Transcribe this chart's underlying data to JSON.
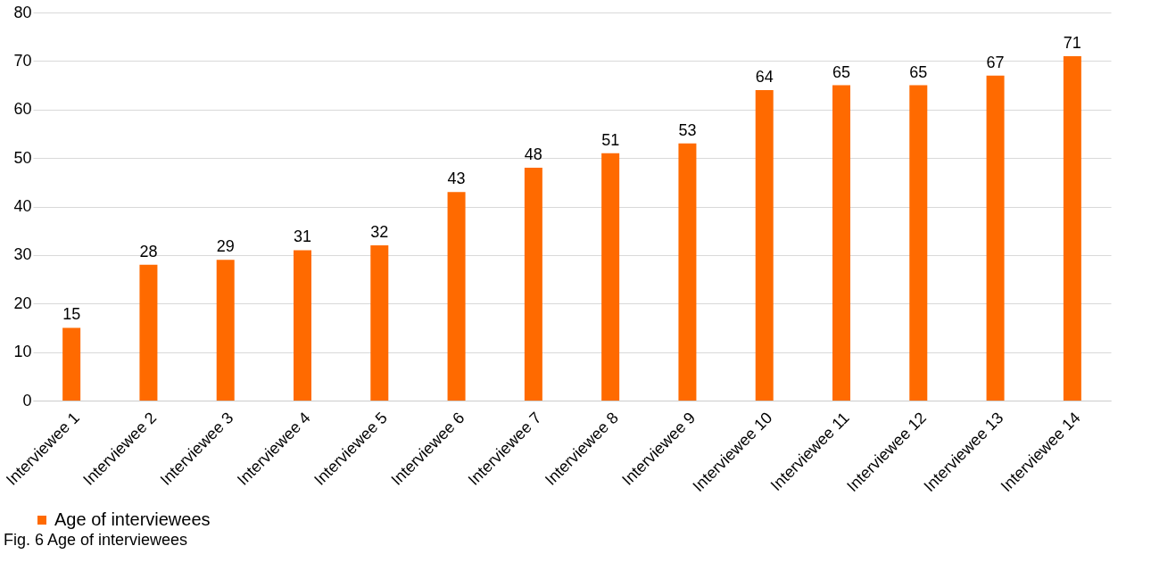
{
  "chart_data": {
    "type": "bar",
    "categories": [
      "Interviewee 1",
      "Interviewee 2",
      "Interviewee 3",
      "Interviewee 4",
      "Interviewee 5",
      "Interviewee 6",
      "Interviewee 7",
      "Interviewee 8",
      "Interviewee 9",
      "Interviewee 10",
      "Interviewee 11",
      "Interviewee 12",
      "Interviewee 13",
      "Interviewee 14"
    ],
    "series": [
      {
        "name": "Age of interviewees",
        "color": "#ff6a00",
        "values": [
          15,
          28,
          29,
          31,
          32,
          43,
          48,
          51,
          53,
          64,
          65,
          65,
          67,
          71
        ]
      }
    ],
    "ylim": [
      0,
      80
    ],
    "yticks": [
      0,
      10,
      20,
      30,
      40,
      50,
      60,
      70,
      80
    ],
    "grid": "y",
    "legend": "bottom",
    "data_labels": true,
    "annotations": [
      "Fig. 6 Age of interviewees"
    ]
  }
}
